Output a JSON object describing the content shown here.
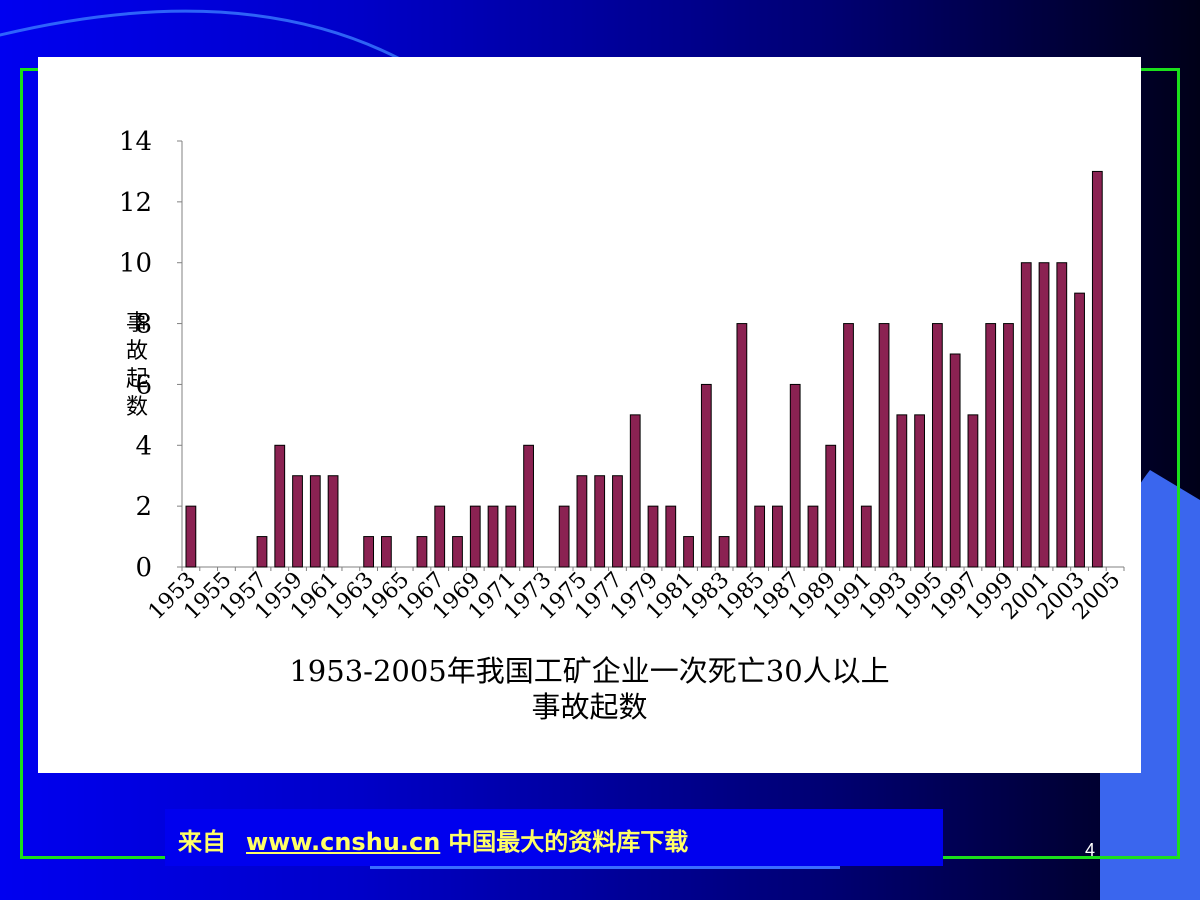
{
  "slide": {
    "page_number": "4",
    "footer": {
      "prefix": "来自",
      "link_text": "www.cnshu.cn",
      "suffix": "中国最大的资料库下载"
    },
    "colors": {
      "background": "#0000e0",
      "frame": "#1be01b",
      "footer_bar": "#0000ee",
      "footer_text": "#ffff66",
      "bar_fill": "#8b2252"
    }
  },
  "chart_data": {
    "type": "bar",
    "title_line1": "1953-2005年我国工矿企业一次死亡30人以上",
    "title_line2": "事故起数",
    "ylabel_chars": [
      "事",
      "故",
      "起",
      "数"
    ],
    "ylim": [
      0,
      14
    ],
    "yticks": [
      0,
      2,
      4,
      6,
      8,
      10,
      12,
      14
    ],
    "grid": false,
    "legend": "none",
    "categories": [
      1953,
      1954,
      1955,
      1956,
      1957,
      1958,
      1959,
      1960,
      1961,
      1962,
      1963,
      1964,
      1965,
      1966,
      1967,
      1968,
      1969,
      1970,
      1971,
      1972,
      1973,
      1974,
      1975,
      1976,
      1977,
      1978,
      1979,
      1980,
      1981,
      1982,
      1983,
      1984,
      1985,
      1986,
      1987,
      1988,
      1989,
      1990,
      1991,
      1992,
      1993,
      1994,
      1995,
      1996,
      1997,
      1998,
      1999,
      2000,
      2001,
      2002,
      2003,
      2004,
      2005
    ],
    "values": [
      2,
      0,
      0,
      0,
      1,
      4,
      3,
      3,
      3,
      0,
      1,
      1,
      0,
      1,
      2,
      1,
      2,
      2,
      2,
      4,
      0,
      2,
      3,
      3,
      3,
      5,
      2,
      2,
      1,
      6,
      1,
      8,
      2,
      2,
      6,
      2,
      4,
      8,
      2,
      8,
      5,
      5,
      8,
      7,
      5,
      8,
      8,
      10,
      10,
      10,
      9,
      13,
      0
    ],
    "xtick_labels": [
      "1953",
      "1955",
      "1957",
      "1959",
      "1961",
      "1963",
      "1965",
      "1967",
      "1969",
      "1971",
      "1973",
      "1975",
      "1977",
      "1979",
      "1981",
      "1983",
      "1985",
      "1987",
      "1989",
      "1991",
      "1993",
      "1995",
      "1997",
      "1999",
      "2001",
      "2003",
      "2005"
    ]
  }
}
